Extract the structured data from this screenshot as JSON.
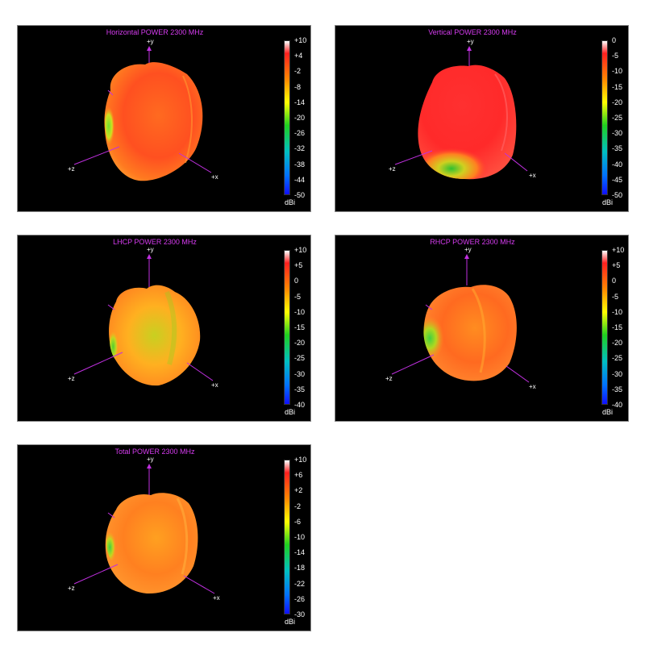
{
  "panels": [
    {
      "title": "Horizontal POWER 2300  MHz",
      "ticks": [
        "+10",
        "+4",
        "-2",
        "-8",
        "-14",
        "-20",
        "-26",
        "-32",
        "-38",
        "-44",
        "-50"
      ],
      "unit": "dBi",
      "axes": {
        "x": "+x",
        "y": "+y",
        "z": "+z"
      },
      "blob": "red"
    },
    {
      "title": "Vertical POWER 2300  MHz",
      "ticks": [
        "0",
        "-5",
        "-10",
        "-15",
        "-20",
        "-25",
        "-30",
        "-35",
        "-40",
        "-45",
        "-50"
      ],
      "unit": "dBi",
      "axes": {
        "x": "+x",
        "y": "+y",
        "z": "+z"
      },
      "blob": "red2"
    },
    {
      "title": "LHCP POWER 2300  MHz",
      "ticks": [
        "+10",
        "+5",
        "0",
        "-5",
        "-10",
        "-15",
        "-20",
        "-25",
        "-30",
        "-35",
        "-40"
      ],
      "unit": "dBi",
      "axes": {
        "x": "+x",
        "y": "+y",
        "z": "+z"
      },
      "blob": "yellow"
    },
    {
      "title": "RHCP POWER 2300  MHz",
      "ticks": [
        "+10",
        "+5",
        "0",
        "-5",
        "-10",
        "-15",
        "-20",
        "-25",
        "-30",
        "-35",
        "-40"
      ],
      "unit": "dBi",
      "axes": {
        "x": "+x",
        "y": "+y",
        "z": "+z"
      },
      "blob": "orange"
    },
    {
      "title": "Total POWER 2300  MHz",
      "ticks": [
        "+10",
        "+6",
        "+2",
        "-2",
        "-6",
        "-10",
        "-14",
        "-18",
        "-22",
        "-26",
        "-30"
      ],
      "unit": "dBi",
      "axes": {
        "x": "+x",
        "y": "+y",
        "z": "+z"
      },
      "blob": "orange2"
    }
  ],
  "colors": {
    "title": "#d63cf0",
    "axis": "#c030e0",
    "colorbar": [
      "#ffffff",
      "#ff2020",
      "#ff8800",
      "#ffff00",
      "#20d020",
      "#00c0c0",
      "#0070ff",
      "#1010ff"
    ]
  }
}
